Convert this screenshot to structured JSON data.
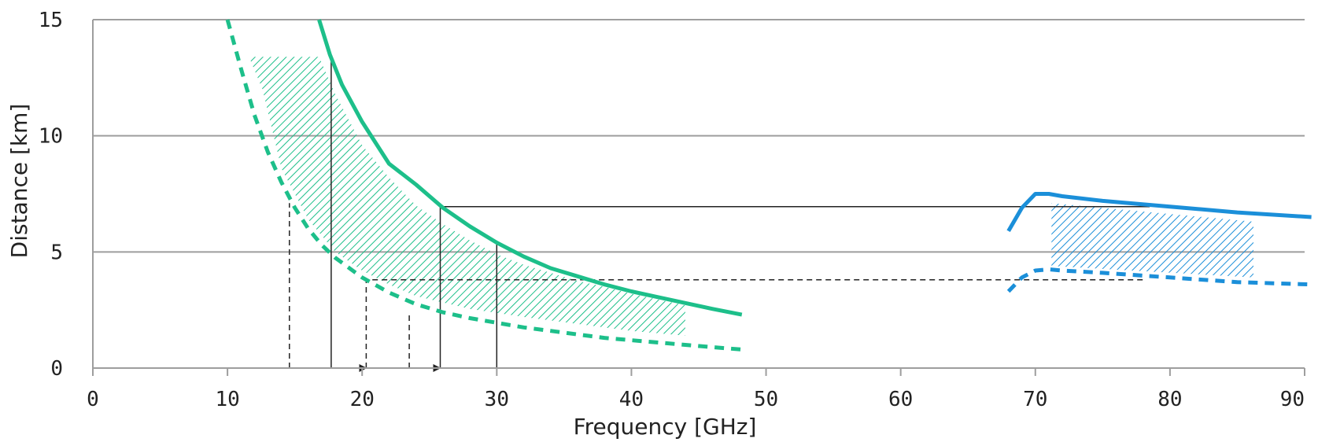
{
  "chart_data": {
    "type": "line",
    "xlabel": "Frequency [GHz]",
    "ylabel": "Distance [km]",
    "xlim": [
      0,
      90
    ],
    "ylim": [
      0,
      15
    ],
    "x_ticks": [
      0,
      10,
      20,
      30,
      40,
      50,
      60,
      70,
      80,
      90
    ],
    "y_ticks": [
      0,
      5,
      10,
      15
    ],
    "grid": "horizontal",
    "legend": "none",
    "colors": {
      "green": "#1dbf8a",
      "blue": "#1b8fd9",
      "guide": "#222222"
    },
    "series": [
      {
        "color": "green",
        "style": "solid",
        "x": [
          16.8,
          17.6,
          18.5,
          20,
          22,
          24,
          26,
          28,
          30,
          32,
          34,
          36,
          38,
          40,
          42,
          44,
          46,
          48.2
        ],
        "y": [
          15,
          13.5,
          12.2,
          10.6,
          8.8,
          7.9,
          6.9,
          6.1,
          5.4,
          4.8,
          4.3,
          3.95,
          3.6,
          3.3,
          3.05,
          2.8,
          2.55,
          2.3
        ]
      },
      {
        "color": "green",
        "style": "dashed",
        "x": [
          10,
          11,
          12,
          13,
          14,
          15,
          16,
          17,
          18,
          20,
          22,
          24,
          26,
          28,
          30,
          32,
          34,
          36,
          38,
          40,
          42,
          44,
          46,
          48.2
        ],
        "y": [
          15,
          12.9,
          10.9,
          9.3,
          8.0,
          6.9,
          6.0,
          5.3,
          4.75,
          3.9,
          3.25,
          2.75,
          2.4,
          2.15,
          1.95,
          1.75,
          1.6,
          1.45,
          1.3,
          1.2,
          1.1,
          1.0,
          0.9,
          0.8
        ]
      },
      {
        "color": "blue",
        "style": "solid",
        "x": [
          68,
          69,
          70,
          71,
          72,
          75,
          80,
          85,
          90.5
        ],
        "y": [
          5.9,
          6.9,
          7.5,
          7.5,
          7.4,
          7.2,
          6.95,
          6.7,
          6.5
        ]
      },
      {
        "color": "blue",
        "style": "dashed",
        "x": [
          68,
          69,
          70,
          71,
          72,
          75,
          80,
          85,
          90.5
        ],
        "y": [
          3.3,
          3.9,
          4.2,
          4.25,
          4.2,
          4.1,
          3.9,
          3.7,
          3.6
        ]
      }
    ],
    "hatched_regions": [
      {
        "color": "green",
        "x": [
          11.6,
          16.8,
          18,
          20,
          22,
          24,
          26,
          28,
          30,
          32,
          34,
          36,
          38,
          40,
          42,
          44,
          44,
          40,
          36,
          32,
          28,
          24,
          22,
          20,
          18,
          16,
          14,
          12.6,
          11.6
        ],
        "y": [
          13.4,
          13.4,
          11.8,
          9.6,
          8.2,
          7.0,
          6.2,
          5.5,
          4.9,
          4.45,
          4.1,
          3.75,
          3.5,
          3.2,
          2.95,
          2.7,
          1.4,
          1.6,
          1.9,
          2.2,
          2.55,
          3.1,
          3.6,
          4.2,
          5.0,
          6.4,
          8.6,
          12.0,
          13.4
        ]
      },
      {
        "color": "blue",
        "x": [
          71.2,
          71.2,
          86.2,
          86.2
        ],
        "y": [
          4.4,
          7.1,
          6.3,
          3.9
        ]
      }
    ],
    "guide_lines": [
      {
        "style": "solid",
        "x": [
          17.7,
          17.7
        ],
        "y": [
          0,
          13.4
        ]
      },
      {
        "style": "solid",
        "x": [
          30,
          30
        ],
        "y": [
          0,
          5.4
        ]
      },
      {
        "style": "solid",
        "x": [
          25.8,
          25.8,
          78.5
        ],
        "y": [
          0,
          6.95,
          6.95
        ],
        "arrow_at": "start"
      },
      {
        "style": "dashed",
        "x": [
          14.6,
          14.6
        ],
        "y": [
          0,
          7.1
        ]
      },
      {
        "style": "dashed",
        "x": [
          23.5,
          23.5
        ],
        "y": [
          0,
          2.3
        ]
      },
      {
        "style": "dashed",
        "x": [
          20.3,
          20.3,
          78
        ],
        "y": [
          0,
          3.8,
          3.8
        ],
        "arrow_at": "start"
      }
    ]
  }
}
